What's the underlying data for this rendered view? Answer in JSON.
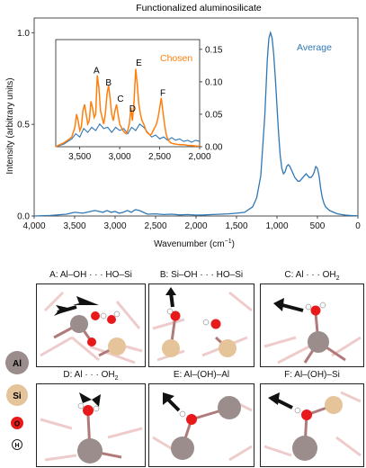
{
  "chart_data": {
    "type": "line",
    "title": "Functionalized aluminosilicate",
    "xlabel": "Wavenumber (cm",
    "xlabel_sup": "−1",
    "xlabel_close": ")",
    "ylabel": "Intensity (arbitrary units)",
    "xlim": [
      4000,
      0
    ],
    "ylim": [
      0,
      1.08
    ],
    "x_ticks": [
      "4,000",
      "3,500",
      "3,000",
      "2,500",
      "2,000",
      "1,500",
      "1,000",
      "500",
      "0"
    ],
    "x_tick_values": [
      4000,
      3500,
      3000,
      2500,
      2000,
      1500,
      1000,
      500,
      0
    ],
    "y_ticks": [
      "0.0",
      "0.5",
      "1.0"
    ],
    "y_tick_values": [
      0,
      0.5,
      1.0
    ],
    "series": [
      {
        "name": "Average",
        "color": "#2f77b4",
        "x": [
          4000,
          3800,
          3600,
          3500,
          3400,
          3300,
          3250,
          3200,
          3150,
          3100,
          3050,
          3000,
          2950,
          2900,
          2850,
          2800,
          2750,
          2700,
          2650,
          2600,
          2500,
          2400,
          2300,
          2200,
          2100,
          2000,
          1900,
          1800,
          1700,
          1600,
          1500,
          1400,
          1300,
          1250,
          1200,
          1150,
          1120,
          1100,
          1080,
          1060,
          1040,
          1020,
          1000,
          980,
          960,
          940,
          920,
          900,
          880,
          860,
          840,
          820,
          800,
          780,
          760,
          740,
          720,
          700,
          680,
          660,
          640,
          620,
          600,
          580,
          560,
          540,
          520,
          500,
          480,
          460,
          440,
          420,
          400,
          350,
          300,
          250,
          200,
          150,
          100,
          50,
          0
        ],
        "y": [
          0.0,
          0.003,
          0.01,
          0.02,
          0.015,
          0.025,
          0.03,
          0.025,
          0.02,
          0.03,
          0.02,
          0.025,
          0.015,
          0.02,
          0.03,
          0.02,
          0.035,
          0.03,
          0.02,
          0.01,
          0.012,
          0.008,
          0.01,
          0.006,
          0.008,
          0.005,
          0.006,
          0.008,
          0.01,
          0.012,
          0.015,
          0.02,
          0.05,
          0.1,
          0.22,
          0.55,
          0.85,
          0.97,
          1.0,
          0.97,
          0.88,
          0.75,
          0.6,
          0.45,
          0.33,
          0.26,
          0.23,
          0.24,
          0.27,
          0.28,
          0.27,
          0.25,
          0.23,
          0.21,
          0.2,
          0.19,
          0.19,
          0.2,
          0.21,
          0.22,
          0.23,
          0.22,
          0.21,
          0.21,
          0.22,
          0.24,
          0.27,
          0.26,
          0.22,
          0.15,
          0.1,
          0.07,
          0.05,
          0.03,
          0.02,
          0.012,
          0.008,
          0.005,
          0.003,
          0.002,
          0.001
        ]
      }
    ],
    "inset": {
      "xlim": [
        3800,
        2000
      ],
      "ylim": [
        0,
        0.165
      ],
      "x_ticks": [
        "3,500",
        "3,000",
        "2,500",
        "2,000"
      ],
      "x_tick_values": [
        3500,
        3000,
        2500,
        2000
      ],
      "y_ticks": [
        "0.00",
        "0.05",
        "0.10",
        "0.15"
      ],
      "y_tick_values": [
        0,
        0.05,
        0.1,
        0.15
      ],
      "series": [
        {
          "name": "Chosen",
          "color": "#ff7f0e",
          "x": [
            3800,
            3750,
            3700,
            3650,
            3600,
            3560,
            3540,
            3520,
            3500,
            3480,
            3460,
            3440,
            3420,
            3400,
            3380,
            3360,
            3340,
            3320,
            3300,
            3280,
            3260,
            3240,
            3220,
            3200,
            3180,
            3160,
            3140,
            3120,
            3100,
            3080,
            3060,
            3040,
            3020,
            3000,
            2980,
            2960,
            2940,
            2920,
            2900,
            2880,
            2860,
            2840,
            2820,
            2800,
            2780,
            2760,
            2740,
            2720,
            2700,
            2680,
            2660,
            2640,
            2620,
            2600,
            2580,
            2560,
            2540,
            2520,
            2500,
            2480,
            2460,
            2440,
            2420,
            2400,
            2380,
            2360,
            2340,
            2300,
            2250,
            2200,
            2150,
            2100,
            2050,
            2000
          ],
          "y": [
            0.0,
            0.003,
            0.006,
            0.01,
            0.015,
            0.03,
            0.05,
            0.04,
            0.025,
            0.03,
            0.055,
            0.065,
            0.05,
            0.035,
            0.04,
            0.07,
            0.06,
            0.045,
            0.05,
            0.11,
            0.09,
            0.055,
            0.045,
            0.035,
            0.05,
            0.08,
            0.095,
            0.075,
            0.05,
            0.04,
            0.055,
            0.065,
            0.05,
            0.035,
            0.03,
            0.025,
            0.022,
            0.02,
            0.025,
            0.035,
            0.06,
            0.04,
            0.07,
            0.12,
            0.095,
            0.065,
            0.05,
            0.04,
            0.035,
            0.028,
            0.022,
            0.02,
            0.018,
            0.02,
            0.025,
            0.03,
            0.035,
            0.045,
            0.06,
            0.075,
            0.055,
            0.035,
            0.02,
            0.012,
            0.008,
            0.006,
            0.005,
            0.004,
            0.003,
            0.003,
            0.002,
            0.002,
            0.001,
            0.001
          ]
        },
        {
          "name": "",
          "color": "#2f77b4",
          "x": [
            3800,
            3700,
            3600,
            3550,
            3500,
            3450,
            3400,
            3350,
            3300,
            3250,
            3200,
            3150,
            3100,
            3050,
            3000,
            2950,
            2900,
            2850,
            2800,
            2750,
            2700,
            2650,
            2600,
            2550,
            2500,
            2450,
            2400,
            2350,
            2300,
            2250,
            2200,
            2150,
            2100,
            2050,
            2000
          ],
          "y": [
            0.0,
            0.004,
            0.012,
            0.02,
            0.015,
            0.028,
            0.022,
            0.03,
            0.025,
            0.035,
            0.028,
            0.03,
            0.022,
            0.03,
            0.025,
            0.028,
            0.02,
            0.03,
            0.025,
            0.035,
            0.03,
            0.022,
            0.015,
            0.018,
            0.012,
            0.015,
            0.01,
            0.014,
            0.01,
            0.012,
            0.008,
            0.01,
            0.007,
            0.01,
            0.008
          ]
        }
      ],
      "peak_labels": [
        {
          "text": "A",
          "x": 3290,
          "y": 0.113
        },
        {
          "text": "B",
          "x": 3140,
          "y": 0.094
        },
        {
          "text": "C",
          "x": 2990,
          "y": 0.069
        },
        {
          "text": "D",
          "x": 2840,
          "y": 0.054
        },
        {
          "text": "E",
          "x": 2760,
          "y": 0.125
        },
        {
          "text": "F",
          "x": 2460,
          "y": 0.078
        }
      ]
    }
  },
  "panels": [
    {
      "title": "A: Al–OH · · · HO–Si"
    },
    {
      "title": "B: Si–OH · · · HO–Si"
    },
    {
      "title": "C: Al · · · OH",
      "sub": "2"
    },
    {
      "title": "D: Al · · · OH",
      "sub": "2"
    },
    {
      "title": "E: Al–(OH)–Al"
    },
    {
      "title": "F: Al–(OH)–Si"
    }
  ],
  "atom_legend": [
    {
      "label": "Al",
      "color": "#9a8d8c"
    },
    {
      "label": "Si",
      "color": "#e5c49a"
    },
    {
      "label": "O",
      "color": "#e8191a"
    },
    {
      "label": "H",
      "color": "#ffffff"
    }
  ]
}
